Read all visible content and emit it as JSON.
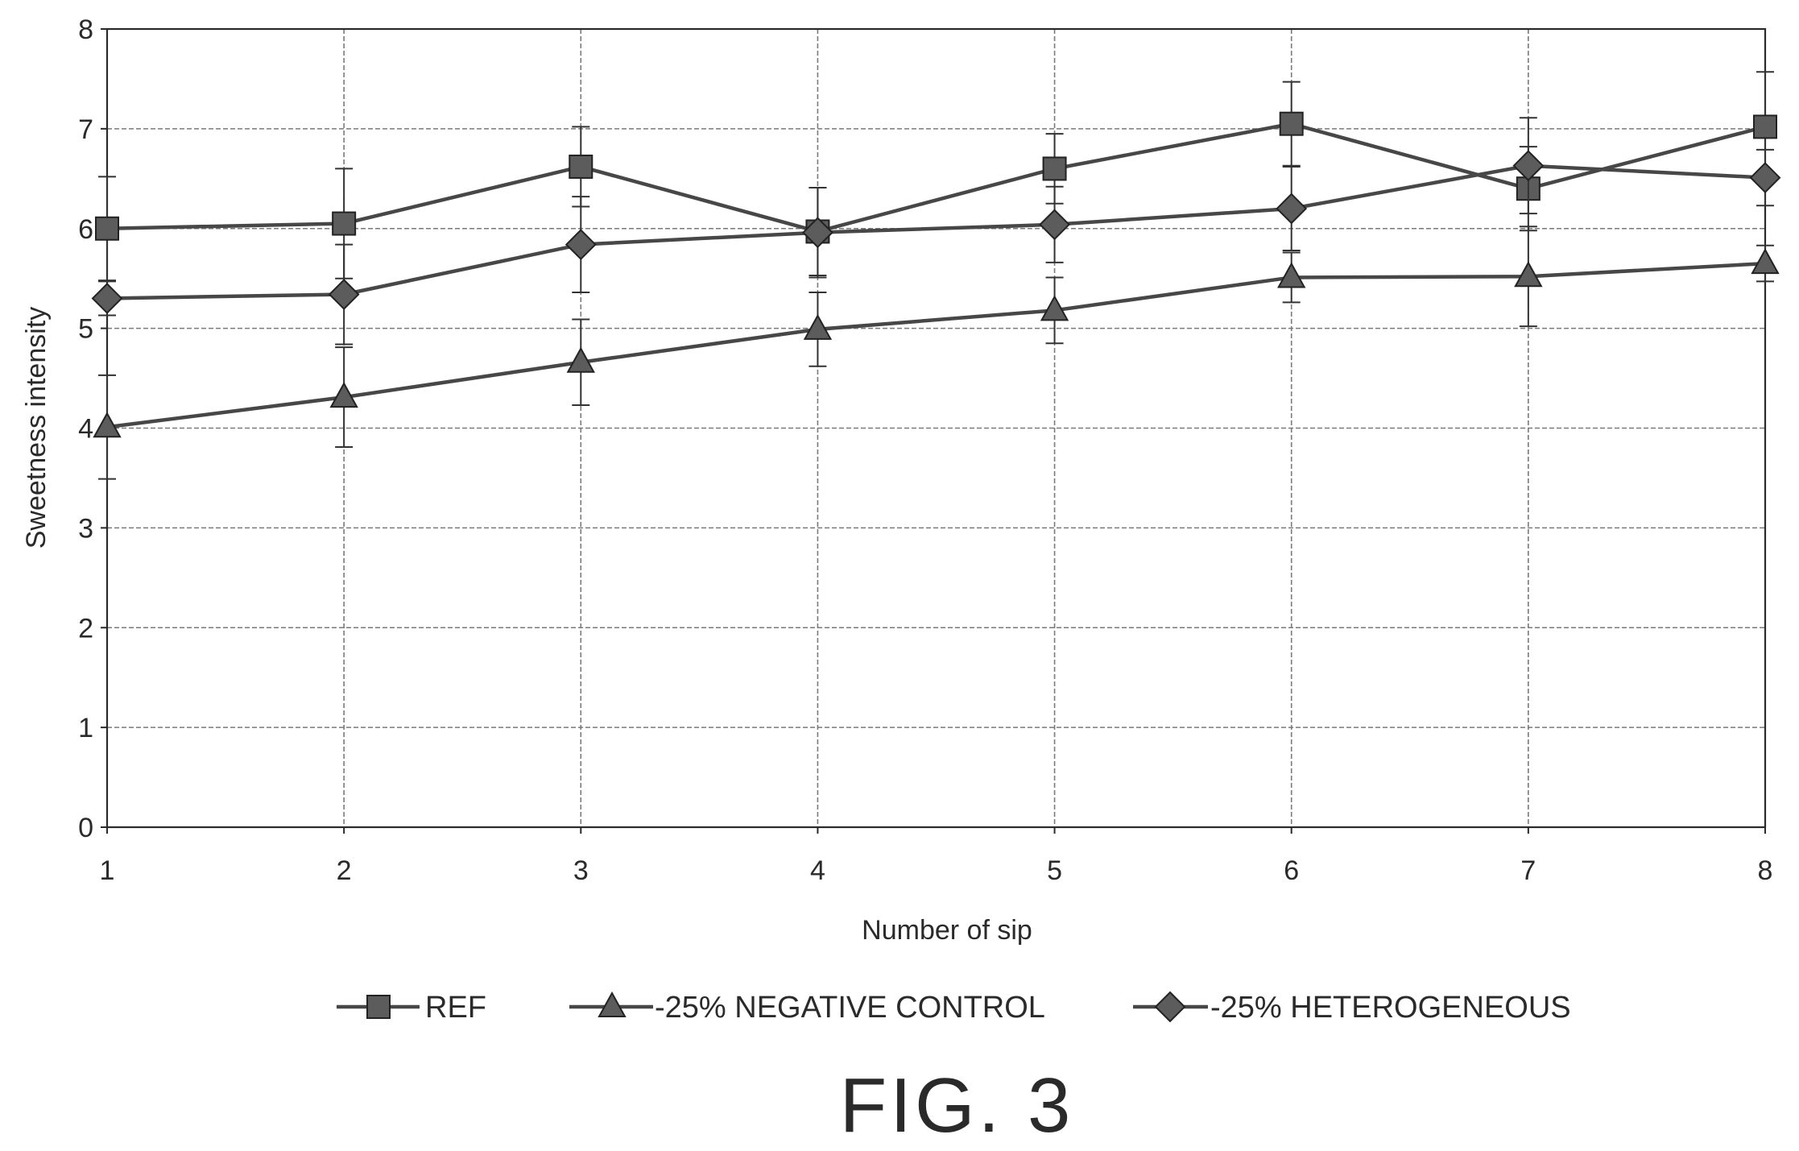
{
  "figure_label": "FIG. 3",
  "colors": {
    "line": "#474747",
    "marker_fill": "#5c5c5c",
    "marker_stroke": "#222222",
    "grid": "#7a7a7a",
    "axis": "#2a2a2a",
    "background": "#ffffff"
  },
  "chart_data": {
    "type": "line",
    "title": "",
    "xlabel": "Number of sip",
    "ylabel": "Sweetness intensity",
    "x": [
      1,
      2,
      3,
      4,
      5,
      6,
      7,
      8
    ],
    "xlim": [
      1,
      8
    ],
    "ylim": [
      0,
      8
    ],
    "yticks": [
      0,
      1,
      2,
      3,
      4,
      5,
      6,
      7,
      8
    ],
    "grid": true,
    "legend_position": "bottom",
    "error_bars": true,
    "series": [
      {
        "name": "REF",
        "marker": "square",
        "values": [
          6.0,
          6.05,
          6.62,
          5.97,
          6.6,
          7.05,
          6.4,
          7.02
        ],
        "error": [
          0.52,
          0.55,
          0.4,
          0.44,
          0.35,
          0.42,
          0.42,
          0.55
        ]
      },
      {
        "name": "-25% NEGATIVE CONTROL",
        "marker": "triangle",
        "values": [
          4.01,
          4.31,
          4.66,
          4.99,
          5.18,
          5.51,
          5.52,
          5.65
        ],
        "error": [
          0.52,
          0.5,
          0.43,
          0.37,
          0.33,
          0.25,
          0.5,
          0.18
        ]
      },
      {
        "name": "-25% HETEROGENEOUS",
        "marker": "diamond",
        "values": [
          5.3,
          5.34,
          5.84,
          5.96,
          6.04,
          6.2,
          6.63,
          6.51
        ],
        "error": [
          0.17,
          0.5,
          0.48,
          0.45,
          0.38,
          0.42,
          0.48,
          0.28
        ]
      }
    ]
  }
}
